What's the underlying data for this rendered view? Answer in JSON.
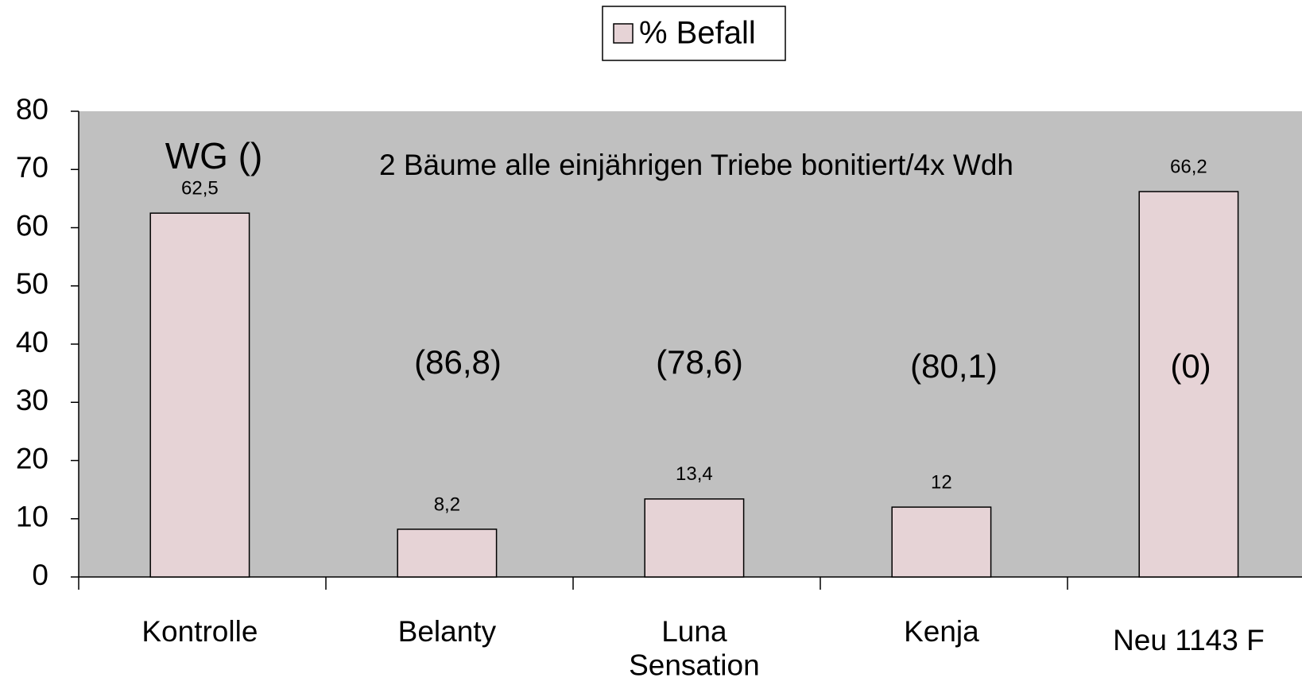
{
  "chart_data": {
    "type": "bar",
    "categories": [
      "Kontrolle",
      "Belanty",
      "Luna\nSensation",
      "Kenja",
      "Neu 1143 F"
    ],
    "series": [
      {
        "name": "% Befall",
        "color": "#e6d3d6",
        "values": [
          62.5,
          8.2,
          13.4,
          12,
          66.2
        ],
        "value_labels": [
          "62,5",
          "8,2",
          "13,4",
          "12",
          "66,2"
        ]
      }
    ],
    "ylim": [
      0,
      80
    ],
    "yticks": [
      0,
      10,
      20,
      30,
      40,
      50,
      60,
      70,
      80
    ],
    "annotations": [
      "WG ()",
      "2 Bäume alle einjährigen Triebe bonitiert/4x Wdh",
      "(86,8)",
      "(78,6)",
      "(80,1)",
      "(0)"
    ],
    "legend": "top",
    "plot_background": "#c0c0c0"
  }
}
